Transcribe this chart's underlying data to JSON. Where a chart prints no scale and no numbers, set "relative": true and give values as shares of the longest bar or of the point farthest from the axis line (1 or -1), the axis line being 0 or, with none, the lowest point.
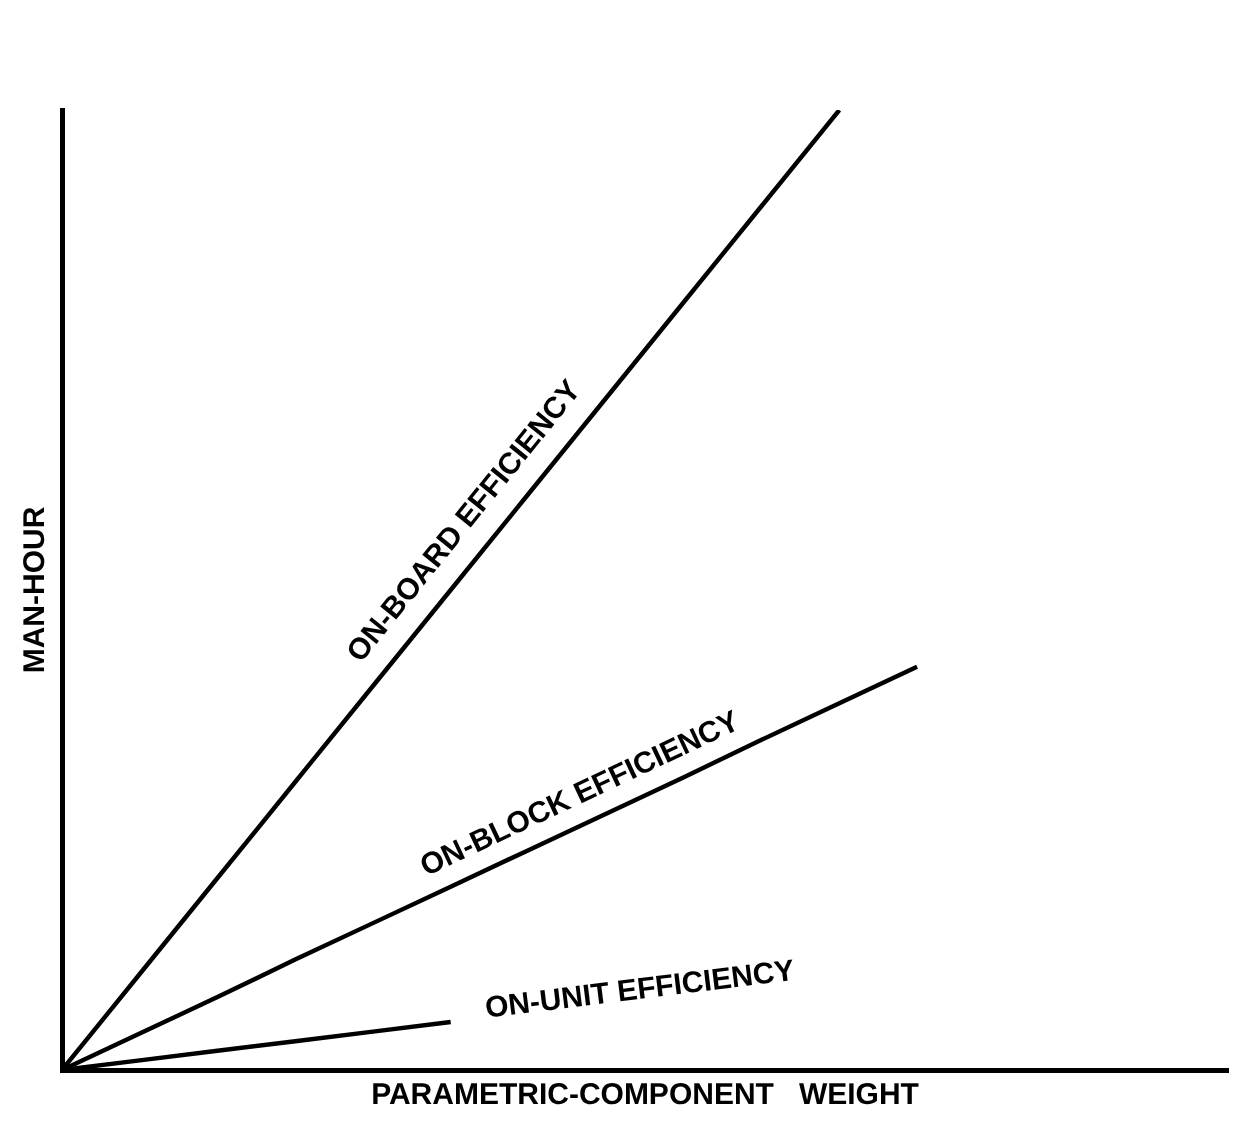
{
  "chart_data": {
    "type": "line",
    "relative": true,
    "xlabel": "PARAMETRIC-COMPONENT   WEIGHT",
    "ylabel": "MAN-HOUR",
    "tick_labels": false,
    "grid": false,
    "legend": false,
    "marker": "none",
    "line_style": "solid",
    "categories": [
      null,
      null,
      null,
      null,
      null,
      null,
      null,
      null,
      null,
      null,
      null,
      null,
      null,
      null,
      null,
      null
    ],
    "series": [
      {
        "name": "ON-BOARD EFFICIENCY",
        "color": "#000000",
        "values": [
          0,
          0.1,
          0.2,
          0.3,
          0.4,
          0.5,
          0.6,
          0.7,
          0.8,
          0.9,
          1,
          null,
          null,
          null,
          null,
          null
        ]
      },
      {
        "name": "ON-BLOCK EFFICIENCY",
        "color": "#000000",
        "values": [
          0,
          0.038,
          0.076,
          0.115,
          0.153,
          0.191,
          0.229,
          0.267,
          0.305,
          0.344,
          0.382,
          0.42,
          null,
          null,
          null,
          null
        ]
      },
      {
        "name": "ON-UNIT EFFICIENCY",
        "color": "#000000",
        "values": [
          0,
          0.01,
          0.02,
          0.03,
          0.04,
          0.05,
          null,
          null,
          null,
          null,
          null,
          null,
          null,
          null,
          null,
          null
        ]
      }
    ]
  }
}
